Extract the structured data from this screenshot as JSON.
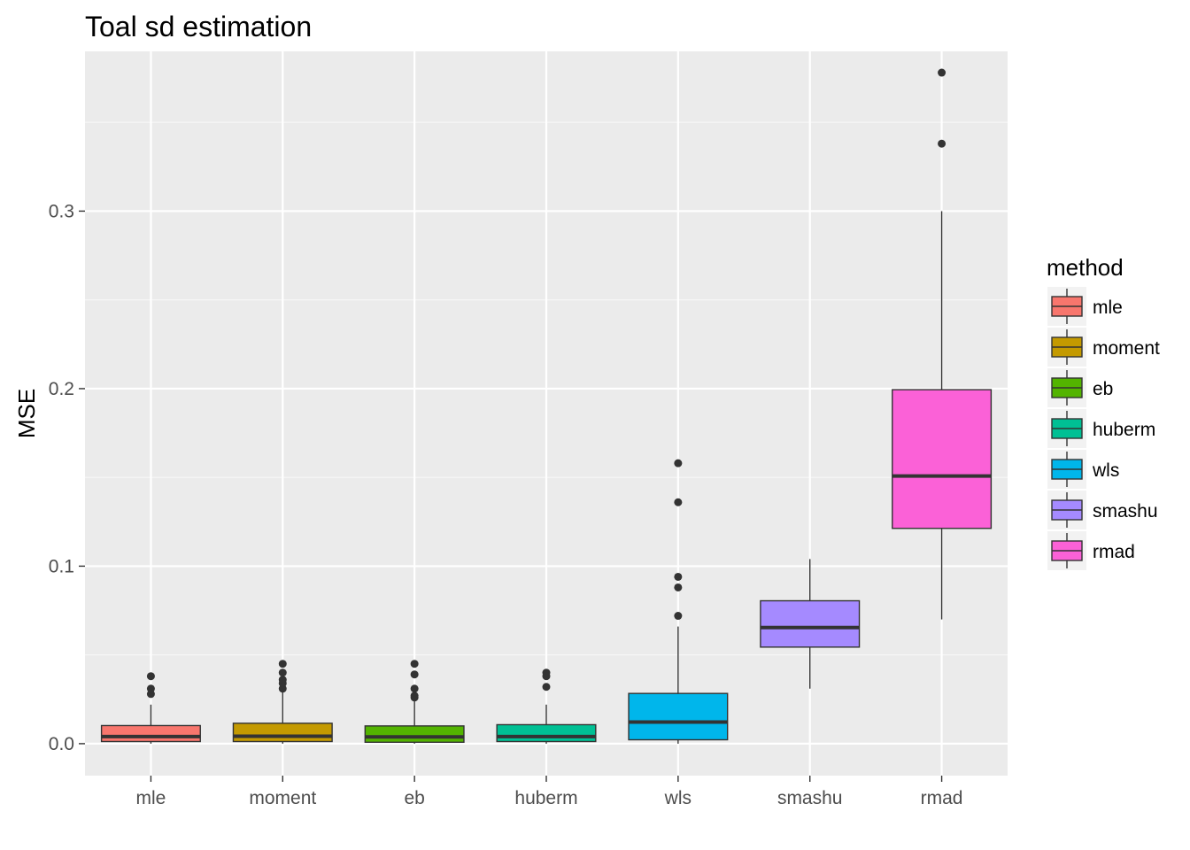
{
  "chart_data": {
    "type": "boxplot",
    "title": "Toal sd estimation",
    "xlabel": "",
    "ylabel": "MSE",
    "ylim": [
      -0.018,
      0.39
    ],
    "yticks": [
      0.0,
      0.1,
      0.2,
      0.3
    ],
    "ytick_labels": [
      "0.0",
      "0.1",
      "0.2",
      "0.3"
    ],
    "y_minor_ticks": [
      0.05,
      0.15,
      0.25,
      0.35
    ],
    "grid": true,
    "legend_title": "method",
    "legend_position": "right",
    "categories": [
      "mle",
      "moment",
      "eb",
      "huberm",
      "wls",
      "smashu",
      "rmad"
    ],
    "series": [
      {
        "name": "mle",
        "color": "#F8766D",
        "q1": 0.0012,
        "median": 0.004,
        "q3": 0.0102,
        "whisker_low": 0.0,
        "whisker_high": 0.022,
        "outliers": [
          0.028,
          0.031,
          0.038
        ]
      },
      {
        "name": "moment",
        "color": "#C49A00",
        "q1": 0.0012,
        "median": 0.0042,
        "q3": 0.0115,
        "whisker_low": 0.0,
        "whisker_high": 0.029,
        "outliers": [
          0.031,
          0.034,
          0.036,
          0.04,
          0.045
        ]
      },
      {
        "name": "eb",
        "color": "#53B400",
        "q1": 0.0008,
        "median": 0.0038,
        "q3": 0.01,
        "whisker_low": 0.0,
        "whisker_high": 0.024,
        "outliers": [
          0.026,
          0.027,
          0.031,
          0.039,
          0.045
        ]
      },
      {
        "name": "huberm",
        "color": "#00C094",
        "q1": 0.0012,
        "median": 0.004,
        "q3": 0.0107,
        "whisker_low": 0.0,
        "whisker_high": 0.022,
        "outliers": [
          0.032,
          0.038,
          0.04
        ]
      },
      {
        "name": "wls",
        "color": "#00B6EB",
        "q1": 0.0022,
        "median": 0.0122,
        "q3": 0.0283,
        "whisker_low": 0.0,
        "whisker_high": 0.066,
        "outliers": [
          0.072,
          0.088,
          0.094,
          0.136,
          0.158
        ]
      },
      {
        "name": "smashu",
        "color": "#A58AFF",
        "q1": 0.0544,
        "median": 0.0654,
        "q3": 0.0805,
        "whisker_low": 0.031,
        "whisker_high": 0.104,
        "outliers": []
      },
      {
        "name": "rmad",
        "color": "#FB61D7",
        "q1": 0.1213,
        "median": 0.1508,
        "q3": 0.1994,
        "whisker_low": 0.07,
        "whisker_high": 0.3,
        "outliers": [
          0.338,
          0.378
        ]
      }
    ]
  }
}
